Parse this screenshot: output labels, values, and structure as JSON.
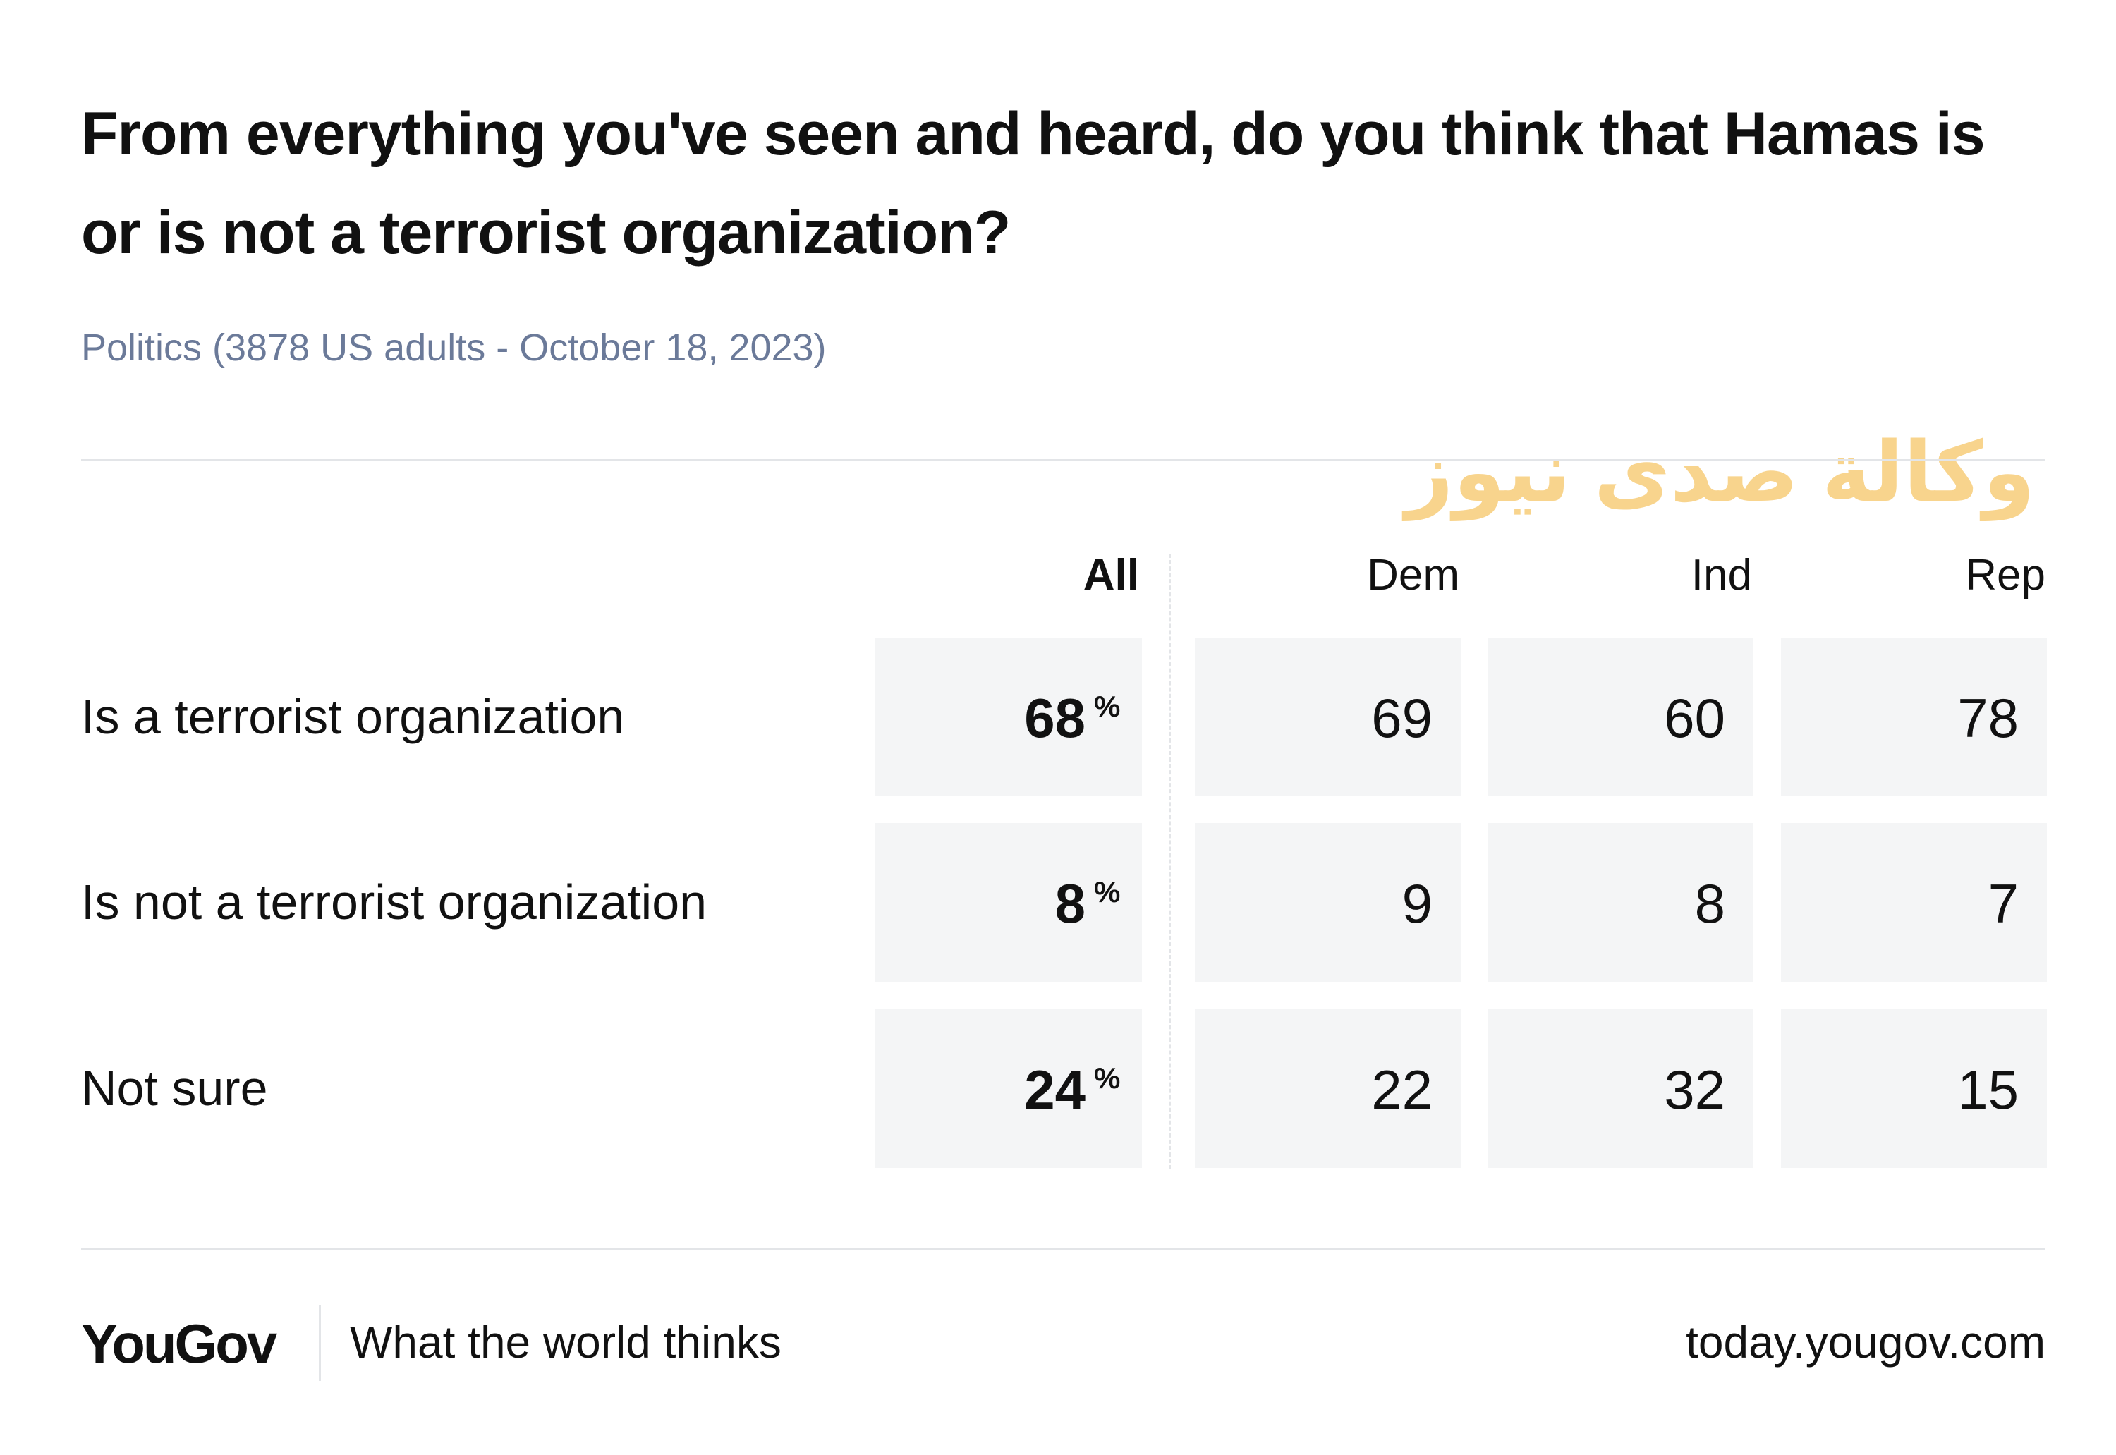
{
  "header": {
    "title": "From everything you've seen and heard, do you think that Hamas is or is not a terrorist organization?",
    "subtitle": "Politics (3878 US adults - October 18, 2023)"
  },
  "watermark": {
    "text": "وكالة صدى نيوز"
  },
  "table": {
    "columns": [
      "All",
      "Dem",
      "Ind",
      "Rep"
    ],
    "unit": "%",
    "rows": [
      {
        "label": "Is a terrorist organization",
        "values": [
          68,
          69,
          60,
          78
        ]
      },
      {
        "label": "Is not a terrorist organization",
        "values": [
          8,
          9,
          8,
          7
        ]
      },
      {
        "label": "Not sure",
        "values": [
          24,
          22,
          32,
          15
        ]
      }
    ]
  },
  "footer": {
    "brand": "YouGov",
    "tagline": "What the world thinks",
    "url": "today.yougov.com"
  }
}
